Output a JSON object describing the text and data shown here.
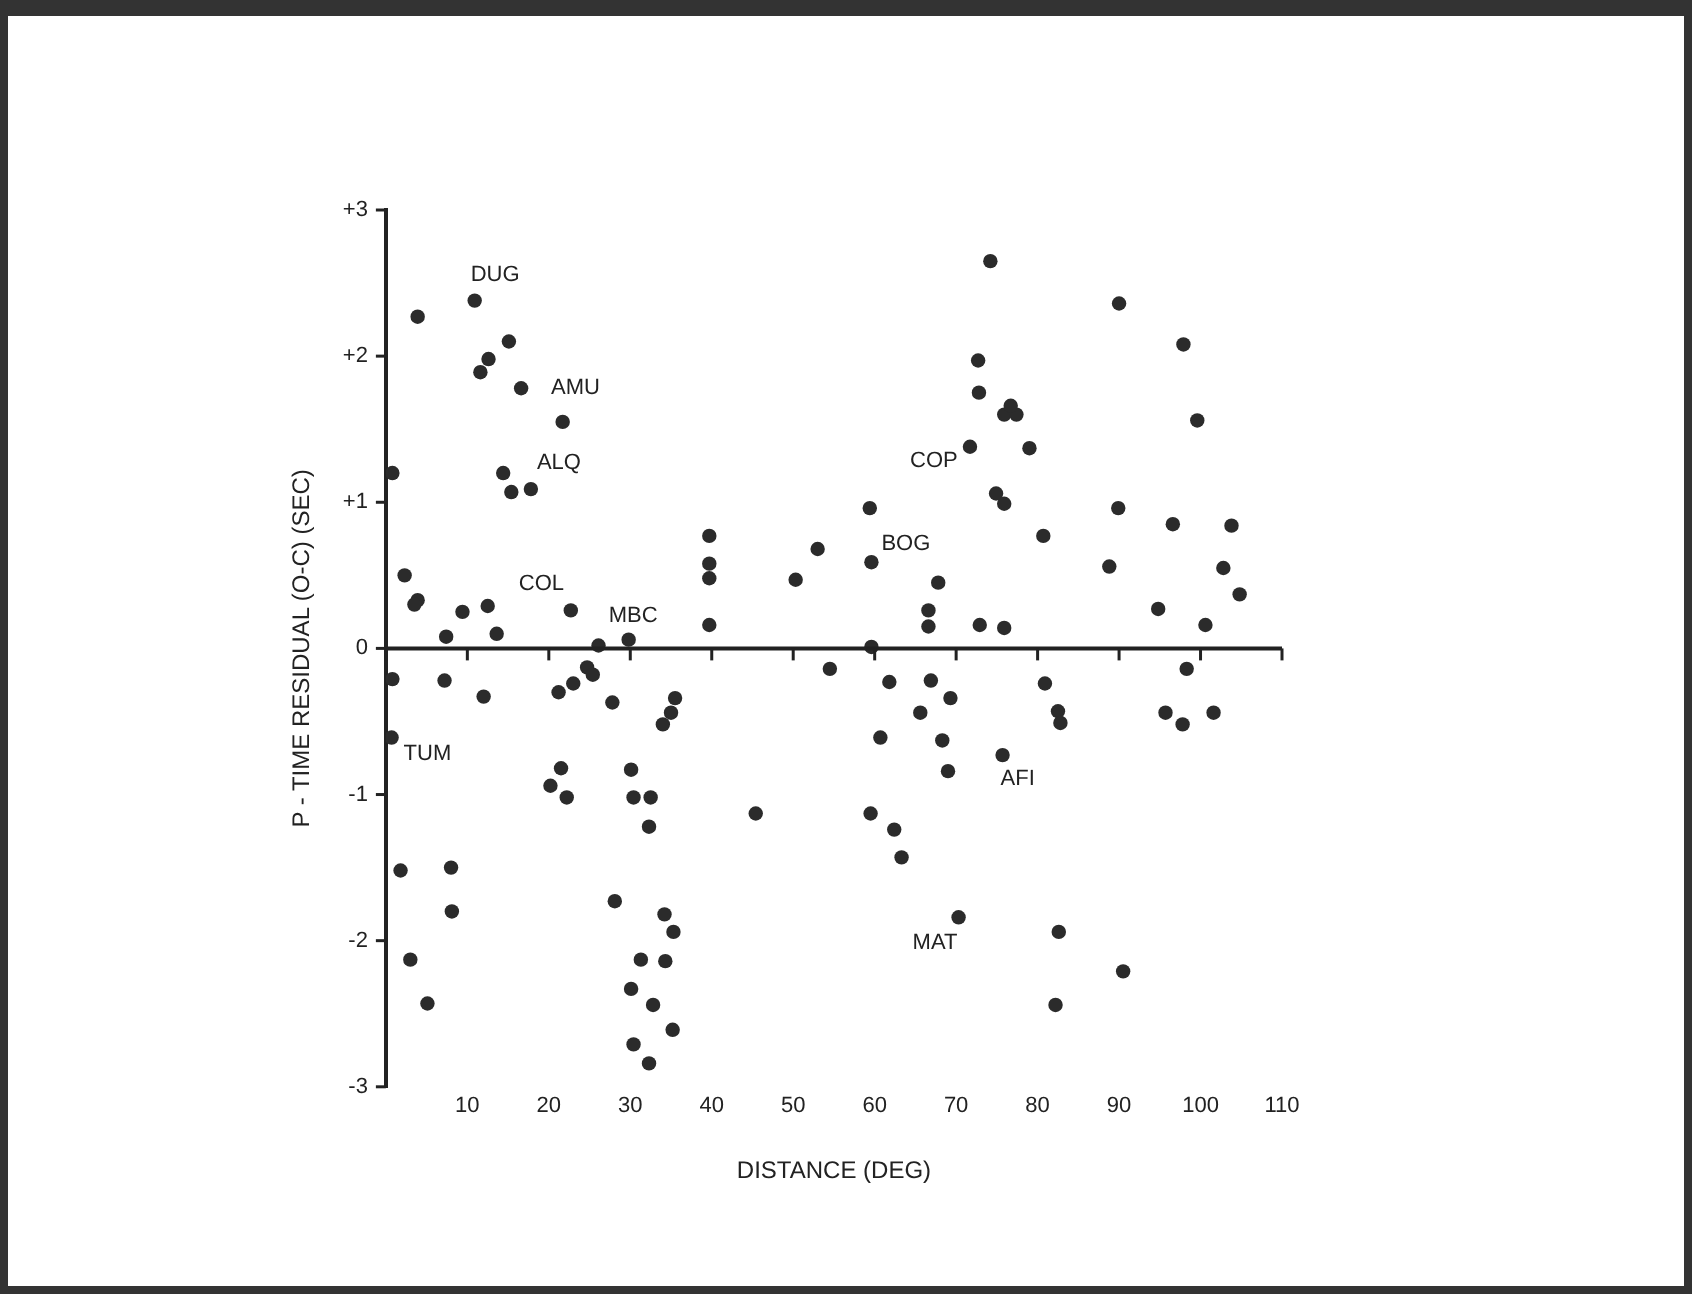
{
  "chart_data": {
    "type": "scatter",
    "xlabel": "DISTANCE (DEG)",
    "ylabel": "P - TIME RESIDUAL (O-C) (SEC)",
    "xlim": [
      0,
      110
    ],
    "ylim": [
      -3,
      3
    ],
    "xticks": [
      {
        "value": 0,
        "label": null
      },
      10,
      20,
      30,
      40,
      50,
      60,
      70,
      80,
      90,
      100,
      110
    ],
    "yticks": [
      {
        "value": -3,
        "label": "-3"
      },
      {
        "value": -2,
        "label": "-2"
      },
      {
        "value": -1,
        "label": "-1"
      },
      {
        "value": 0,
        "label": "0"
      },
      {
        "value": 1,
        "label": "+1"
      },
      {
        "value": 2,
        "label": "+2"
      },
      {
        "value": 3,
        "label": "+3"
      }
    ],
    "grid": false,
    "legend": false,
    "marker": "circle",
    "ref_lines": [
      {
        "axis": "y",
        "value": 0
      }
    ],
    "annotations": [
      {
        "text": "DUG",
        "x": 10.9,
        "y": 2.38
      },
      {
        "text": "AMU",
        "x": 16.6,
        "y": 1.78
      },
      {
        "text": "ALQ",
        "x": 17.8,
        "y": 1.09
      },
      {
        "text": "COL",
        "x": 22.7,
        "y": 0.26
      },
      {
        "text": "MBC",
        "x": 29.8,
        "y": 0.06
      },
      {
        "text": "TUM",
        "x": 0.7,
        "y": -0.61
      },
      {
        "text": "COP",
        "x": 71.7,
        "y": 1.38
      },
      {
        "text": "BOG",
        "x": 59.6,
        "y": 0.59
      },
      {
        "text": "AFI",
        "x": 75.7,
        "y": -0.73
      },
      {
        "text": "MAT",
        "x": 70.3,
        "y": -1.84
      }
    ],
    "series": [
      {
        "color": "#2b2b2b",
        "x": [
          0.8,
          3.9,
          10.9,
          15.1,
          12.6,
          11.6,
          16.6,
          21.7,
          14.4,
          15.4,
          17.8,
          2.3,
          3.9,
          3.5,
          9.4,
          12.5,
          7.4,
          13.6,
          22.7,
          26.1,
          29.8,
          39.7,
          39.7,
          39.7,
          39.7,
          50.3,
          53,
          0.8,
          7.2,
          12,
          21.2,
          23,
          24.7,
          25.4,
          27.8,
          35.5,
          35,
          34,
          0.7,
          21.5,
          20.2,
          22.2,
          30.1,
          30.4,
          32.5,
          32.3,
          45.4,
          1.8,
          8,
          8.1,
          28.1,
          34.2,
          35.3,
          3,
          31.3,
          34.3,
          5.1,
          30.1,
          32.8,
          35.2,
          30.4,
          32.3,
          74.2,
          90,
          97.9,
          72.7,
          72.8,
          75.9,
          77.4,
          76.7,
          99.6,
          71.7,
          79,
          74.9,
          75.9,
          59.4,
          89.9,
          96.6,
          103.8,
          80.7,
          59.6,
          88.8,
          102.8,
          104.8,
          67.8,
          66.6,
          66.6,
          72.9,
          75.9,
          94.8,
          100.6,
          59.6,
          54.5,
          61.8,
          66.9,
          69.3,
          65.6,
          80.9,
          82.5,
          82.8,
          98.3,
          95.7,
          97.8,
          101.6,
          60.7,
          68.3,
          69,
          75.7,
          59.5,
          62.4,
          63.3,
          70.3,
          82.6,
          90.5,
          82.2
        ],
        "values": [
          1.2,
          2.27,
          2.38,
          2.1,
          1.98,
          1.89,
          1.78,
          1.55,
          1.2,
          1.07,
          1.09,
          0.5,
          0.33,
          0.3,
          0.25,
          0.29,
          0.08,
          0.1,
          0.26,
          0.02,
          0.06,
          0.77,
          0.58,
          0.48,
          0.16,
          0.47,
          0.68,
          -0.21,
          -0.22,
          -0.33,
          -0.3,
          -0.24,
          -0.13,
          -0.18,
          -0.37,
          -0.34,
          -0.44,
          -0.52,
          -0.61,
          -0.82,
          -0.94,
          -1.02,
          -0.83,
          -1.02,
          -1.02,
          -1.22,
          -1.13,
          -1.52,
          -1.5,
          -1.8,
          -1.73,
          -1.82,
          -1.94,
          -2.13,
          -2.13,
          -2.14,
          -2.43,
          -2.33,
          -2.44,
          -2.61,
          -2.71,
          -2.84,
          2.65,
          2.36,
          2.08,
          1.97,
          1.75,
          1.6,
          1.6,
          1.66,
          1.56,
          1.38,
          1.37,
          1.06,
          0.99,
          0.96,
          0.96,
          0.85,
          0.84,
          0.77,
          0.59,
          0.56,
          0.55,
          0.37,
          0.45,
          0.26,
          0.15,
          0.16,
          0.14,
          0.27,
          0.16,
          0.01,
          -0.14,
          -0.23,
          -0.22,
          -0.34,
          -0.44,
          -0.24,
          -0.43,
          -0.51,
          -0.14,
          -0.44,
          -0.52,
          -0.44,
          -0.61,
          -0.63,
          -0.84,
          -0.73,
          -1.13,
          -1.24,
          -1.43,
          -1.84,
          -1.94,
          -2.21,
          -2.44
        ]
      }
    ]
  }
}
